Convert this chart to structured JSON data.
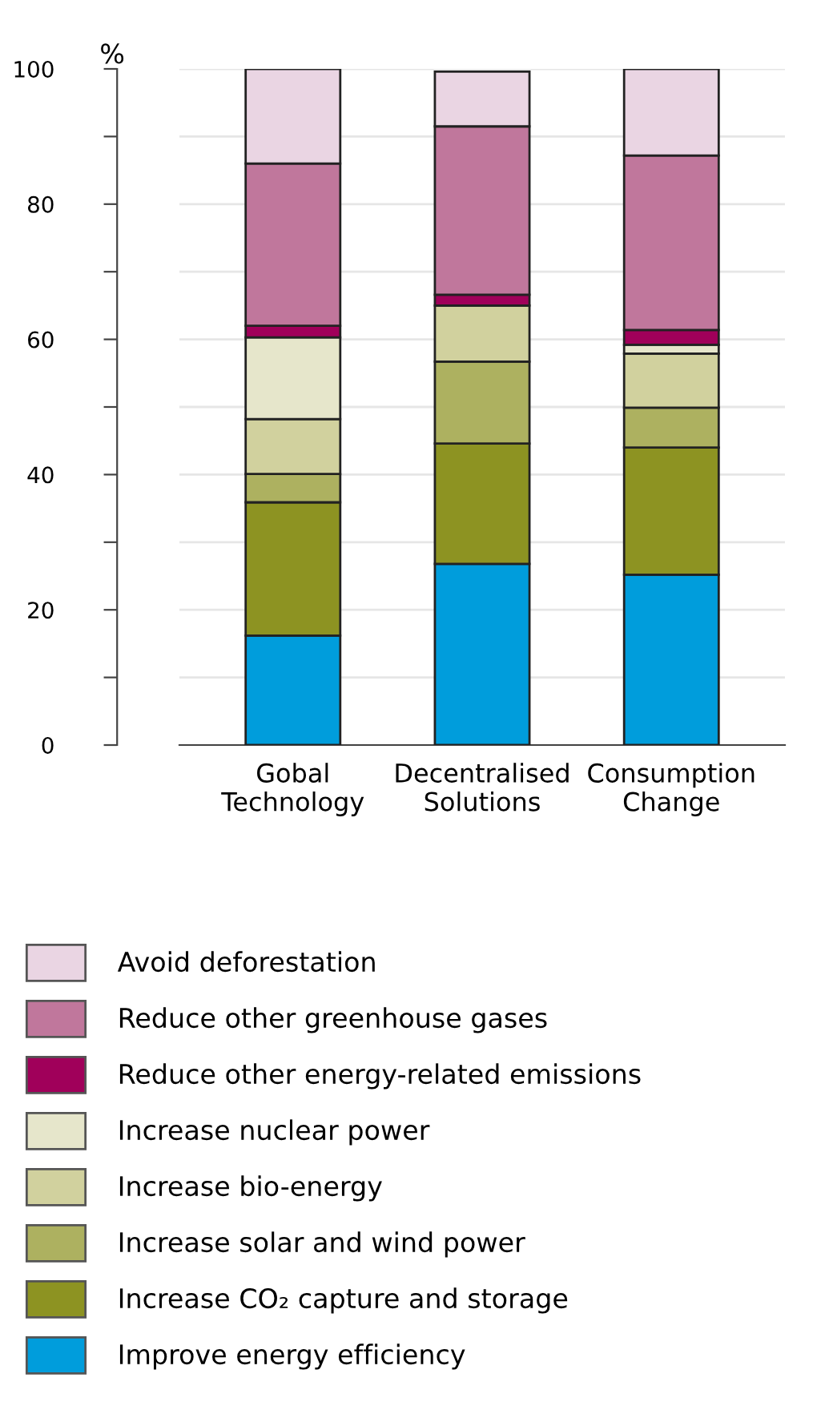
{
  "chart_data": {
    "type": "bar",
    "stacked": true,
    "ylabel": "%",
    "categories": [
      "Gobal\nTechnology",
      "Decentralised\nSolutions",
      "Consumption\nChange"
    ],
    "series": [
      {
        "name": "Improve energy efficiency",
        "color": "#009ddc",
        "values": [
          16.2,
          26.8,
          25.2
        ]
      },
      {
        "name": "Increase CO₂ capture and storage",
        "color": "#8d9322",
        "values": [
          19.7,
          17.8,
          18.8
        ]
      },
      {
        "name": "Increase solar and wind power",
        "color": "#adb160",
        "values": [
          4.2,
          12.1,
          5.9
        ]
      },
      {
        "name": "Increase bio-energy",
        "color": "#d1d19e",
        "values": [
          8.1,
          8.3,
          8.0
        ]
      },
      {
        "name": "Increase nuclear power",
        "color": "#e6e6cb",
        "values": [
          12.1,
          null,
          1.3
        ]
      },
      {
        "name": "Reduce other energy-related emissions",
        "color": "#a0005a",
        "values": [
          1.7,
          1.6,
          2.2
        ]
      },
      {
        "name": "Reduce other greenhouse gases",
        "color": "#c0779c",
        "values": [
          24.0,
          24.9,
          25.8
        ]
      },
      {
        "name": "Avoid deforestation",
        "color": "#ead5e3",
        "values": [
          14.0,
          8.1,
          12.8
        ]
      }
    ],
    "ylim": [
      0,
      100
    ],
    "yticks": [
      0,
      {
        "value": 10,
        "label": null
      },
      20,
      {
        "value": 30,
        "label": null
      },
      40,
      {
        "value": 50,
        "label": null
      },
      60,
      {
        "value": 70,
        "label": null
      },
      80,
      {
        "value": 90,
        "label": null
      },
      100
    ],
    "grid": "y",
    "legend": "bottom"
  }
}
